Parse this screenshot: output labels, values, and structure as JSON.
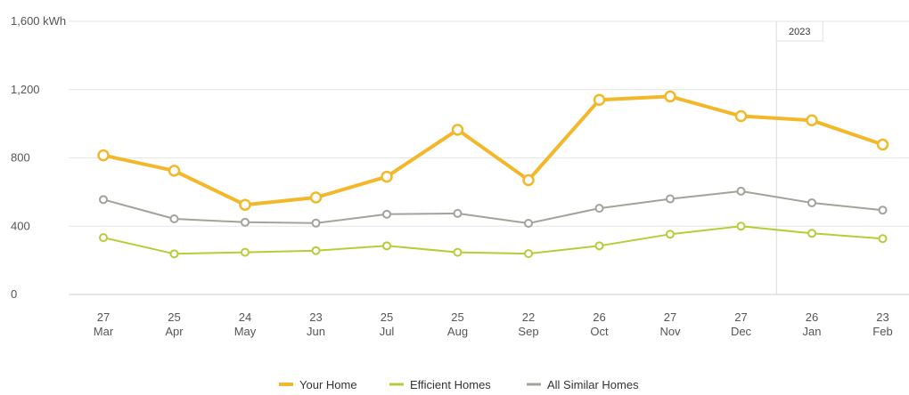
{
  "chart_data": {
    "type": "line",
    "unit": "kWh",
    "x_day": [
      "27",
      "25",
      "24",
      "23",
      "25",
      "25",
      "22",
      "26",
      "27",
      "27",
      "26",
      "23"
    ],
    "x_month": [
      "Mar",
      "Apr",
      "May",
      "Jun",
      "Jul",
      "Aug",
      "Sep",
      "Oct",
      "Nov",
      "Dec",
      "Jan",
      "Feb"
    ],
    "ylim": [
      0,
      1600
    ],
    "yticks": [
      {
        "value": 0,
        "label": "0"
      },
      {
        "value": 400,
        "label": "400"
      },
      {
        "value": 800,
        "label": "800"
      },
      {
        "value": 1200,
        "label": "1,200"
      },
      {
        "value": 1600,
        "label": "1,600 kWh"
      }
    ],
    "grid": true,
    "legend_position": "bottom",
    "year_marker": {
      "label": "2023",
      "after_index": 9
    },
    "series": [
      {
        "name": "Your Home",
        "color": "#F2B829",
        "values": [
          815,
          725,
          525,
          568,
          690,
          965,
          670,
          1140,
          1160,
          1045,
          1020,
          878
        ]
      },
      {
        "name": "Efficient Homes",
        "color": "#B8CC37",
        "values": [
          333,
          238,
          247,
          257,
          285,
          247,
          239,
          285,
          353,
          400,
          358,
          327
        ]
      },
      {
        "name": "All Similar Homes",
        "color": "#A3A39A",
        "values": [
          556,
          443,
          423,
          418,
          470,
          475,
          417,
          505,
          560,
          605,
          537,
          494
        ]
      }
    ]
  }
}
